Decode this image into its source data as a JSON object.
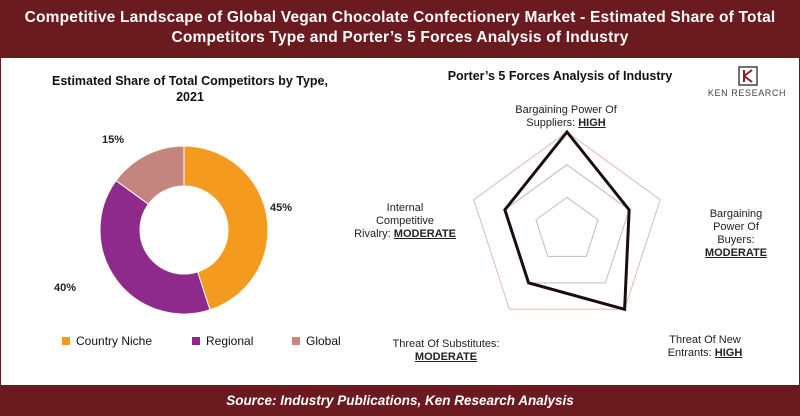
{
  "header": {
    "line1": "Competitive Landscape of Global Vegan Chocolate Confectionery Market - Estimated Share of Total",
    "line2": "Competitors Type and Porter’s 5 Forces Analysis of Industry"
  },
  "footer": {
    "source": "Source: Industry Publications, Ken Research Analysis"
  },
  "logo": {
    "text": "KEN RESEARCH",
    "icon": "ken-research-logo"
  },
  "colors": {
    "country_niche": "#f39a1f",
    "regional": "#8e2a8c",
    "global": "#c4857f",
    "brand": "#6b1a1f"
  },
  "chart_data": [
    {
      "type": "pie",
      "title_line1": "Estimated Share of Total Competitors by Type,",
      "title_line2": "2021",
      "categories": [
        "Country Niche",
        "Regional",
        "Global"
      ],
      "values": [
        45,
        40,
        15
      ],
      "labels": [
        "45%",
        "40%",
        "15%"
      ],
      "donut": true,
      "legend": "bottom"
    },
    {
      "type": "radar",
      "title": "Porter’s 5 Forces Analysis of Industry",
      "axes": [
        {
          "name_line1": "Bargaining Power Of",
          "name_line2": "Suppliers:",
          "level": "HIGH",
          "score": 3
        },
        {
          "name_line1": "Bargaining",
          "name_line2": "Power Of",
          "name_line3": "Buyers:",
          "level": "MODERATE",
          "score": 2
        },
        {
          "name_line1": "Threat Of New",
          "name_line2": "Entrants:",
          "level": "HIGH",
          "score": 3
        },
        {
          "name_line1": "Threat Of Substitutes:",
          "name_line2": "",
          "level": "MODERATE",
          "score": 2
        },
        {
          "name_line1": "Internal",
          "name_line2": "Competitive",
          "name_line3": "Rivalry:",
          "level": "MODERATE",
          "score": 2
        }
      ],
      "max_score": 3
    }
  ]
}
